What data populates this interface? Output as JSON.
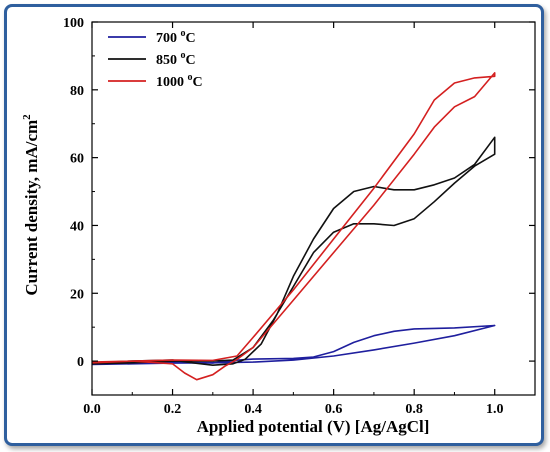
{
  "chart_data": {
    "type": "line",
    "title": "",
    "xlabel": "Applied potential (V) [Ag/AgCl]",
    "ylabel": "Current density, mA/cm",
    "ylabel_sup": "2",
    "xlim": [
      0.0,
      1.1
    ],
    "ylim": [
      -10,
      100
    ],
    "x_ticks": [
      0.0,
      0.2,
      0.4,
      0.6,
      0.8,
      1.0
    ],
    "x_tick_labels": [
      "0.0",
      "0.2",
      "0.4",
      "0.6",
      "0.8",
      "1.0"
    ],
    "y_ticks": [
      0,
      20,
      40,
      60,
      80,
      100
    ],
    "y_tick_labels": [
      "0",
      "20",
      "40",
      "60",
      "80",
      "100"
    ],
    "grid": false,
    "legend_position": "top-left",
    "series": [
      {
        "name": "700",
        "unit_sup": "o",
        "unit": "C",
        "color": "#1f1f9e",
        "points": [
          [
            0.0,
            -0.8
          ],
          [
            0.1,
            -0.6
          ],
          [
            0.2,
            -0.3
          ],
          [
            0.3,
            -0.6
          ],
          [
            0.35,
            0.2
          ],
          [
            0.4,
            0.6
          ],
          [
            0.5,
            0.8
          ],
          [
            0.55,
            1.2
          ],
          [
            0.6,
            2.8
          ],
          [
            0.65,
            5.5
          ],
          [
            0.7,
            7.5
          ],
          [
            0.75,
            8.8
          ],
          [
            0.8,
            9.5
          ],
          [
            0.9,
            9.8
          ],
          [
            1.0,
            10.5
          ],
          [
            0.9,
            7.5
          ],
          [
            0.8,
            5.3
          ],
          [
            0.7,
            3.3
          ],
          [
            0.6,
            1.5
          ],
          [
            0.5,
            0.3
          ],
          [
            0.4,
            -0.3
          ],
          [
            0.3,
            -0.5
          ],
          [
            0.2,
            -0.6
          ],
          [
            0.1,
            -0.8
          ],
          [
            0.0,
            -1.0
          ]
        ]
      },
      {
        "name": "850",
        "unit_sup": "o",
        "unit": "C",
        "color": "#111111",
        "points": [
          [
            0.0,
            -0.5
          ],
          [
            0.1,
            0.0
          ],
          [
            0.2,
            0.3
          ],
          [
            0.25,
            -0.5
          ],
          [
            0.3,
            -1.2
          ],
          [
            0.35,
            -0.8
          ],
          [
            0.38,
            0.5
          ],
          [
            0.42,
            5.0
          ],
          [
            0.46,
            14.0
          ],
          [
            0.5,
            25.0
          ],
          [
            0.55,
            36.0
          ],
          [
            0.6,
            45.0
          ],
          [
            0.65,
            50.0
          ],
          [
            0.7,
            51.5
          ],
          [
            0.75,
            50.5
          ],
          [
            0.8,
            50.5
          ],
          [
            0.85,
            52.0
          ],
          [
            0.9,
            54.0
          ],
          [
            0.95,
            58.0
          ],
          [
            1.0,
            66.0
          ],
          [
            1.0,
            61.0
          ],
          [
            0.95,
            57.5
          ],
          [
            0.9,
            52.5
          ],
          [
            0.85,
            47.0
          ],
          [
            0.8,
            42.0
          ],
          [
            0.75,
            40.0
          ],
          [
            0.7,
            40.5
          ],
          [
            0.65,
            40.5
          ],
          [
            0.6,
            38.0
          ],
          [
            0.55,
            32.0
          ],
          [
            0.5,
            22.0
          ],
          [
            0.45,
            12.0
          ],
          [
            0.4,
            4.0
          ],
          [
            0.35,
            0.3
          ],
          [
            0.3,
            0.0
          ],
          [
            0.2,
            0.0
          ],
          [
            0.1,
            -0.5
          ],
          [
            0.0,
            -0.8
          ]
        ]
      },
      {
        "name": "1000",
        "unit_sup": "o",
        "unit": "C",
        "color": "#d42020",
        "points": [
          [
            0.0,
            -0.3
          ],
          [
            0.1,
            0.0
          ],
          [
            0.2,
            -0.8
          ],
          [
            0.23,
            -3.5
          ],
          [
            0.26,
            -5.5
          ],
          [
            0.3,
            -4.0
          ],
          [
            0.33,
            -1.5
          ],
          [
            0.36,
            0.5
          ],
          [
            0.4,
            4.0
          ],
          [
            0.5,
            18.0
          ],
          [
            0.6,
            32.0
          ],
          [
            0.7,
            46.0
          ],
          [
            0.8,
            61.0
          ],
          [
            0.85,
            69.0
          ],
          [
            0.9,
            75.0
          ],
          [
            0.95,
            78.0
          ],
          [
            1.0,
            85.0
          ],
          [
            1.0,
            84.0
          ],
          [
            0.95,
            83.5
          ],
          [
            0.9,
            82.0
          ],
          [
            0.85,
            77.0
          ],
          [
            0.8,
            67.0
          ],
          [
            0.7,
            51.0
          ],
          [
            0.6,
            36.0
          ],
          [
            0.5,
            21.0
          ],
          [
            0.4,
            7.0
          ],
          [
            0.36,
            1.5
          ],
          [
            0.3,
            0.2
          ],
          [
            0.2,
            0.3
          ],
          [
            0.1,
            0.0
          ],
          [
            0.0,
            -0.5
          ]
        ]
      }
    ]
  }
}
